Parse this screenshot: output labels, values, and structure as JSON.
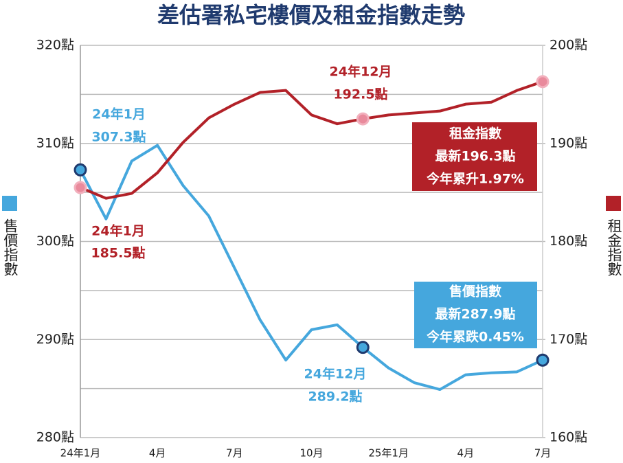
{
  "chart_data": {
    "type": "line",
    "title": "差估署私宅樓價及租金指數走勢",
    "categories": [
      "24年1月",
      null,
      null,
      "4月",
      null,
      null,
      "7月",
      null,
      null,
      "10月",
      null,
      null,
      "25年1月",
      null,
      null,
      "4月",
      null,
      null,
      "7月"
    ],
    "series": [
      {
        "name": "售價指數",
        "color": "#45a7dd",
        "axis": "y",
        "values": [
          307.3,
          302.3,
          308.2,
          309.8,
          305.7,
          302.6,
          297.3,
          292.0,
          287.9,
          291.0,
          291.5,
          289.2,
          287.1,
          285.6,
          284.9,
          286.4,
          286.6,
          286.7,
          287.9
        ]
      },
      {
        "name": "租金指數",
        "color": "#b22128",
        "axis": "y2",
        "values": [
          185.5,
          184.4,
          184.9,
          187.0,
          190.1,
          192.6,
          194.0,
          195.2,
          195.4,
          192.9,
          192.0,
          192.5,
          192.9,
          193.1,
          193.3,
          194.0,
          194.2,
          195.4,
          196.3
        ]
      }
    ],
    "ylim": [
      280,
      320
    ],
    "yticks": [
      {
        "value": 280,
        "label": "280點"
      },
      {
        "value": 290,
        "label": "290點"
      },
      {
        "value": 300,
        "label": "300點"
      },
      {
        "value": 310,
        "label": "310點"
      },
      {
        "value": 320,
        "label": "320點"
      }
    ],
    "y_minor_ticks": [
      285,
      295,
      305,
      315
    ],
    "y2lim": [
      160,
      200
    ],
    "y2ticks": [
      {
        "value": 160,
        "label": "160點"
      },
      {
        "value": 170,
        "label": "170點"
      },
      {
        "value": 180,
        "label": "180點"
      },
      {
        "value": 190,
        "label": "190點"
      },
      {
        "value": 200,
        "label": "200點"
      }
    ],
    "grid": true,
    "annotations": [
      {
        "text": [
          "24年1月",
          "307.3點"
        ]
      },
      {
        "text": [
          "24年1月",
          "185.5點"
        ]
      },
      {
        "text": [
          "24年12月",
          "192.5點"
        ]
      },
      {
        "text": [
          "24年12月",
          "289.2點"
        ]
      },
      {
        "text": [
          "租金指數",
          "最新196.3點",
          "今年累升1.97%"
        ]
      },
      {
        "text": [
          "售價指數",
          "最新287.9點",
          "今年累跌0.45%"
        ]
      }
    ]
  }
}
